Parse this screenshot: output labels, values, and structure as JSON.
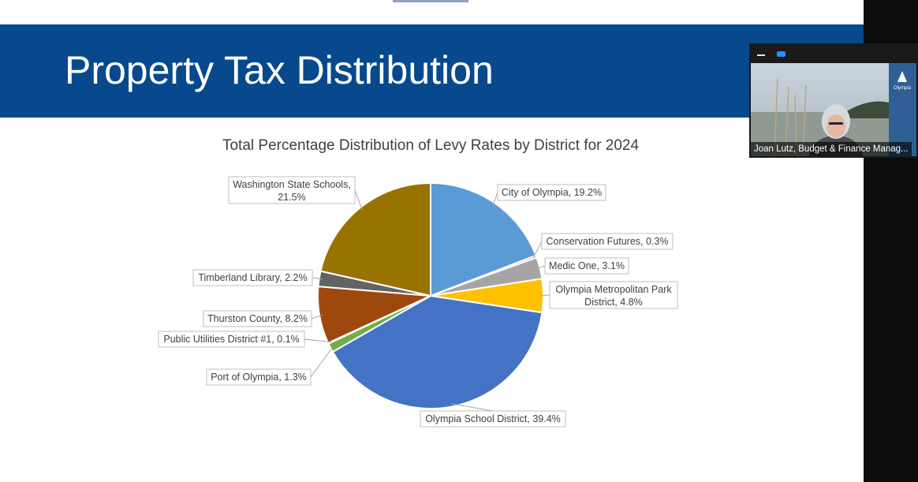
{
  "slide": {
    "title": "Property Tax Distribution"
  },
  "chart_data": {
    "type": "pie",
    "title": "Total Percentage Distribution of Levy Rates by District for 2024",
    "start_angle_deg": 0,
    "direction": "clockwise",
    "slices": [
      {
        "label": "City of Olympia, 19.2%",
        "value": 19.2,
        "color": "#5b9bd5"
      },
      {
        "label": "Conservation Futures, 0.3%",
        "value": 0.3,
        "color": "#ed7d31"
      },
      {
        "label": "Medic One, 3.1%",
        "value": 3.1,
        "color": "#a5a5a5"
      },
      {
        "label": "Olympia Metropolitan Park District, 4.8%",
        "value": 4.8,
        "color": "#ffc000"
      },
      {
        "label": "Olympia School District, 39.4%",
        "value": 39.4,
        "color": "#4472c4"
      },
      {
        "label": "Port of Olympia, 1.3%",
        "value": 1.3,
        "color": "#70ad47"
      },
      {
        "label": "Public Utilities District #1, 0.1%",
        "value": 0.1,
        "color": "#264478"
      },
      {
        "label": "Thurston County, 8.2%",
        "value": 8.2,
        "color": "#9e480e"
      },
      {
        "label": "Timberland Library, 2.2%",
        "value": 2.2,
        "color": "#636363"
      },
      {
        "label": "Washington State Schools, 21.5%",
        "value": 21.5,
        "color": "#997300"
      }
    ]
  },
  "video_tile": {
    "participant_name": "Joan Lutz, Budget & Finance Manag...",
    "logo_text": "Olympia"
  }
}
